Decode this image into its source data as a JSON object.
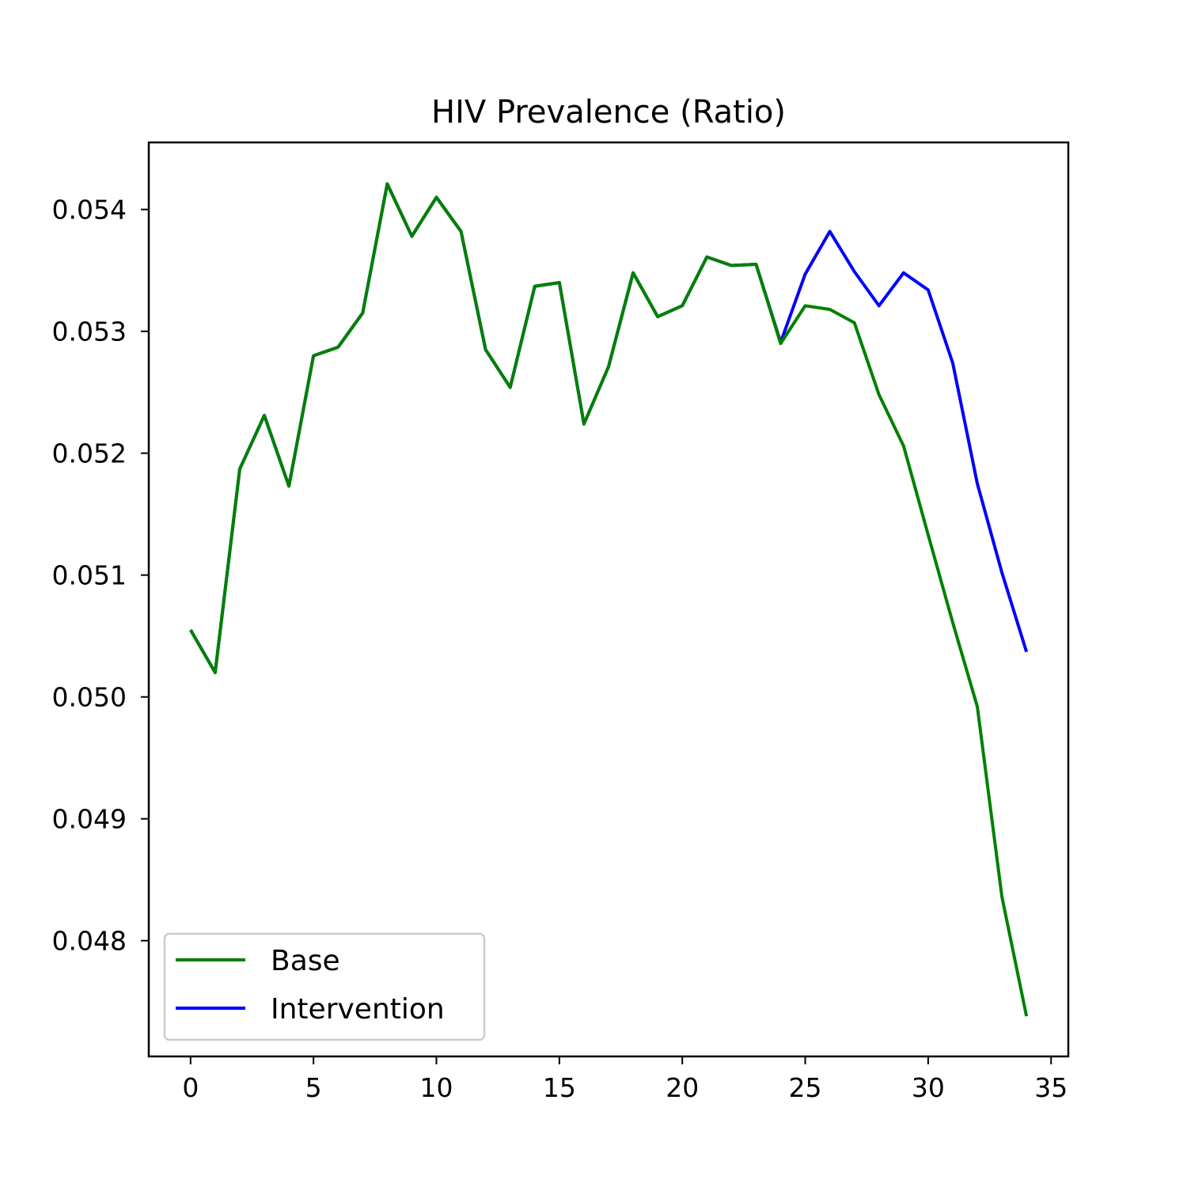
{
  "chart_data": {
    "type": "line",
    "title": "HIV Prevalence (Ratio)",
    "xlabel": "",
    "ylabel": "",
    "xlim": [
      -1.7,
      35.7
    ],
    "ylim": [
      0.04705,
      0.05455
    ],
    "xticks": [
      0,
      5,
      10,
      15,
      20,
      25,
      30,
      35
    ],
    "xtick_labels": [
      "0",
      "5",
      "10",
      "15",
      "20",
      "25",
      "30",
      "35"
    ],
    "yticks": [
      0.048,
      0.049,
      0.05,
      0.051,
      0.052,
      0.053,
      0.054
    ],
    "ytick_labels": [
      "0.048",
      "0.049",
      "0.050",
      "0.051",
      "0.052",
      "0.053",
      "0.054"
    ],
    "grid": false,
    "legend_position": "lower-left",
    "series": [
      {
        "name": "Intervention",
        "color": "#0000ff",
        "x": [
          0,
          1,
          2,
          3,
          4,
          5,
          6,
          7,
          8,
          9,
          10,
          11,
          12,
          13,
          14,
          15,
          16,
          17,
          18,
          19,
          20,
          21,
          22,
          23,
          24,
          25,
          26,
          27,
          28,
          29,
          30,
          31,
          32,
          33,
          34
        ],
        "values": [
          0.05055,
          0.0502,
          0.05187,
          0.05231,
          0.05173,
          0.0528,
          0.05287,
          0.05315,
          0.05421,
          0.05378,
          0.0541,
          0.05382,
          0.05285,
          0.05254,
          0.05337,
          0.0534,
          0.05224,
          0.05271,
          0.05348,
          0.05312,
          0.05321,
          0.05361,
          0.05354,
          0.05355,
          0.05291,
          0.05347,
          0.05382,
          0.05349,
          0.05321,
          0.05348,
          0.05334,
          0.05274,
          0.05175,
          0.05102,
          0.05037
        ]
      },
      {
        "name": "Base",
        "color": "#008000",
        "x": [
          0,
          1,
          2,
          3,
          4,
          5,
          6,
          7,
          8,
          9,
          10,
          11,
          12,
          13,
          14,
          15,
          16,
          17,
          18,
          19,
          20,
          21,
          22,
          23,
          24,
          25,
          26,
          27,
          28,
          29,
          30,
          31,
          32,
          33,
          34
        ],
        "values": [
          0.05055,
          0.0502,
          0.05187,
          0.05231,
          0.05173,
          0.0528,
          0.05287,
          0.05315,
          0.05421,
          0.05378,
          0.0541,
          0.05382,
          0.05285,
          0.05254,
          0.05337,
          0.0534,
          0.05224,
          0.05271,
          0.05348,
          0.05312,
          0.05321,
          0.05361,
          0.05354,
          0.05355,
          0.0529,
          0.05321,
          0.05318,
          0.05307,
          0.05248,
          0.05206,
          0.05133,
          0.05061,
          0.04992,
          0.04836,
          0.04738
        ]
      }
    ],
    "legend": [
      {
        "label": "Base",
        "color": "#008000"
      },
      {
        "label": "Intervention",
        "color": "#0000ff"
      }
    ]
  }
}
